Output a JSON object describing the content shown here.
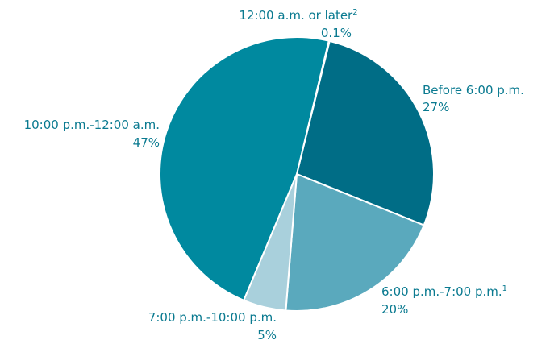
{
  "chart_data": {
    "type": "pie",
    "title": "",
    "slices": [
      {
        "name": "12:00 a.m. or later",
        "footnote": "2",
        "value": 0.1,
        "value_label": "0.1%",
        "color": "#7fbfcf"
      },
      {
        "name": "Before 6:00 p.m.",
        "footnote": "",
        "value": 27,
        "value_label": "27%",
        "color": "#006d86"
      },
      {
        "name": "6:00 p.m.-7:00 p.m.",
        "footnote": "1",
        "value": 20,
        "value_label": "20%",
        "color": "#5aa9bd"
      },
      {
        "name": "7:00 p.m.-10:00 p.m.",
        "footnote": "",
        "value": 5,
        "value_label": "5%",
        "color": "#a9d0dc"
      },
      {
        "name": "10:00 p.m.-12:00 a.m.",
        "footnote": "",
        "value": 47,
        "value_label": "47%",
        "color": "#00899f"
      }
    ],
    "label_color": "#0a7a90"
  }
}
